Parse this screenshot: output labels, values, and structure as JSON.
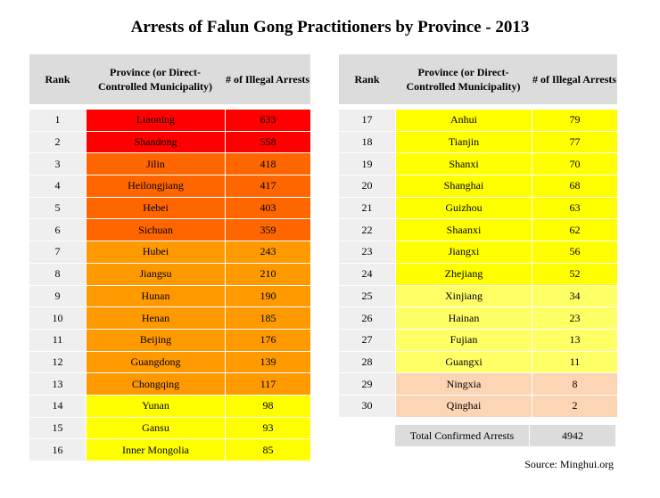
{
  "title": "Arrests of Falun Gong Practitioners by Province - 2013",
  "headers": {
    "rank": "Rank",
    "province": "Province (or Direct-Controlled Municipality)",
    "count": "# of Illegal Arrests"
  },
  "colors": {
    "red": "#ff0000",
    "dark_orange": "#ff6600",
    "orange": "#ff9900",
    "yellow": "#ffff00",
    "light_yellow": "#ffff66",
    "peach": "#fcd5b4",
    "header_gray": "#dcdcdc"
  },
  "left_rows": [
    {
      "rank": "1",
      "province": "Liaoning",
      "count": "633",
      "color": "#ff0000"
    },
    {
      "rank": "2",
      "province": "Shandong",
      "count": "558",
      "color": "#ff0000"
    },
    {
      "rank": "3",
      "province": "Jilin",
      "count": "418",
      "color": "#ff6600"
    },
    {
      "rank": "4",
      "province": "Heilongjiang",
      "count": "417",
      "color": "#ff6600"
    },
    {
      "rank": "5",
      "province": "Hebei",
      "count": "403",
      "color": "#ff6600"
    },
    {
      "rank": "6",
      "province": "Sichuan",
      "count": "359",
      "color": "#ff6600"
    },
    {
      "rank": "7",
      "province": "Hubei",
      "count": "243",
      "color": "#ff9900"
    },
    {
      "rank": "8",
      "province": "Jiangsu",
      "count": "210",
      "color": "#ff9900"
    },
    {
      "rank": "9",
      "province": "Hunan",
      "count": "190",
      "color": "#ff9900"
    },
    {
      "rank": "10",
      "province": "Henan",
      "count": "185",
      "color": "#ff9900"
    },
    {
      "rank": "11",
      "province": "Beijing",
      "count": "176",
      "color": "#ff9900"
    },
    {
      "rank": "12",
      "province": "Guangdong",
      "count": "139",
      "color": "#ff9900"
    },
    {
      "rank": "13",
      "province": "Chongqing",
      "count": "117",
      "color": "#ff9900"
    },
    {
      "rank": "14",
      "province": "Yunan",
      "count": "98",
      "color": "#ffff00"
    },
    {
      "rank": "15",
      "province": "Gansu",
      "count": "93",
      "color": "#ffff00"
    },
    {
      "rank": "16",
      "province": "Inner Mongolia",
      "count": "85",
      "color": "#ffff00"
    }
  ],
  "right_rows": [
    {
      "rank": "17",
      "province": "Anhui",
      "count": "79",
      "color": "#ffff00"
    },
    {
      "rank": "18",
      "province": "Tianjin",
      "count": "77",
      "color": "#ffff00"
    },
    {
      "rank": "19",
      "province": "Shanxi",
      "count": "70",
      "color": "#ffff00"
    },
    {
      "rank": "20",
      "province": "Shanghai",
      "count": "68",
      "color": "#ffff00"
    },
    {
      "rank": "21",
      "province": "Guizhou",
      "count": "63",
      "color": "#ffff00"
    },
    {
      "rank": "22",
      "province": "Shaanxi",
      "count": "62",
      "color": "#ffff00"
    },
    {
      "rank": "23",
      "province": "Jiangxi",
      "count": "56",
      "color": "#ffff00"
    },
    {
      "rank": "24",
      "province": "Zhejiang",
      "count": "52",
      "color": "#ffff00"
    },
    {
      "rank": "25",
      "province": "Xinjiang",
      "count": "34",
      "color": "#ffff66"
    },
    {
      "rank": "26",
      "province": "Hainan",
      "count": "23",
      "color": "#ffff66"
    },
    {
      "rank": "27",
      "province": "Fujian",
      "count": "13",
      "color": "#ffff66"
    },
    {
      "rank": "28",
      "province": "Guangxi",
      "count": "11",
      "color": "#ffff66"
    },
    {
      "rank": "29",
      "province": "Ningxia",
      "count": "8",
      "color": "#fcd5b4"
    },
    {
      "rank": "30",
      "province": "Qinghai",
      "count": "2",
      "color": "#fcd5b4"
    }
  ],
  "total": {
    "label": "Total Confirmed Arrests",
    "value": "4942"
  },
  "source": "Source: Minghui.org"
}
